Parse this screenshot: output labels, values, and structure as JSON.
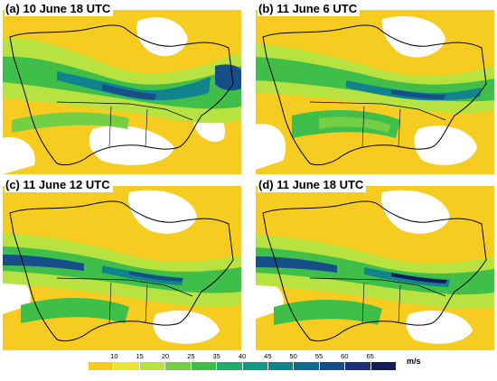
{
  "panels": [
    {
      "id": "a",
      "title": "(a) 10 June 18 UTC"
    },
    {
      "id": "b",
      "title": "(b) 11 June 6 UTC"
    },
    {
      "id": "c",
      "title": "(c) 11 June 12 UTC"
    },
    {
      "id": "d",
      "title": "(d) 11 June 18 UTC"
    }
  ],
  "colorbar": {
    "unit": "m/s",
    "ticks": [
      "10",
      "15",
      "20",
      "25",
      "35",
      "40",
      "45",
      "50",
      "55",
      "60",
      "65"
    ],
    "colors": [
      "#f5cc1f",
      "#e9e332",
      "#b7e23f",
      "#74cf44",
      "#3fbf4a",
      "#1fae6a",
      "#129a86",
      "#10838f",
      "#0f6c8e",
      "#164f87",
      "#1b2f78",
      "#141a5c"
    ]
  }
}
